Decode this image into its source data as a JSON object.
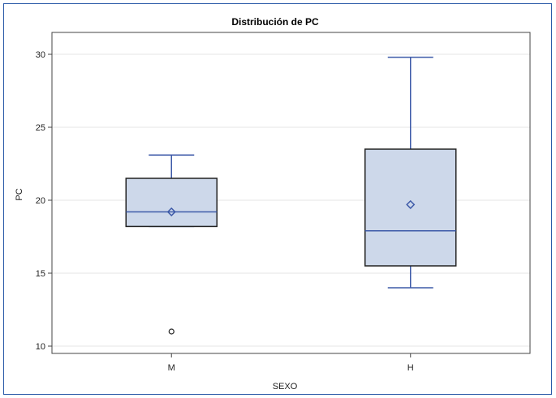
{
  "chart_data": {
    "type": "boxplot",
    "title": "Distribución de PC",
    "xlabel": "SEXO",
    "ylabel": "PC",
    "categories": [
      "M",
      "H"
    ],
    "ylim": [
      9.5,
      31.5
    ],
    "yticks": [
      10,
      15,
      20,
      25,
      30
    ],
    "grid": true,
    "boxes": [
      {
        "category": "M",
        "whisker_low": 18.2,
        "q1": 18.2,
        "median": 19.2,
        "q3": 21.5,
        "whisker_high": 23.1,
        "mean": 19.2,
        "outliers": [
          11.0
        ]
      },
      {
        "category": "H",
        "whisker_low": 14.0,
        "q1": 15.5,
        "median": 17.9,
        "q3": 23.5,
        "whisker_high": 29.8,
        "mean": 19.7,
        "outliers": []
      }
    ],
    "colors": {
      "box_fill": "#cdd8ea",
      "box_stroke": "#222222",
      "whisker": "#3d5aa8",
      "median": "#3d5aa8",
      "mean": "#3d5aa8",
      "grid": "#e6e6e6"
    }
  }
}
